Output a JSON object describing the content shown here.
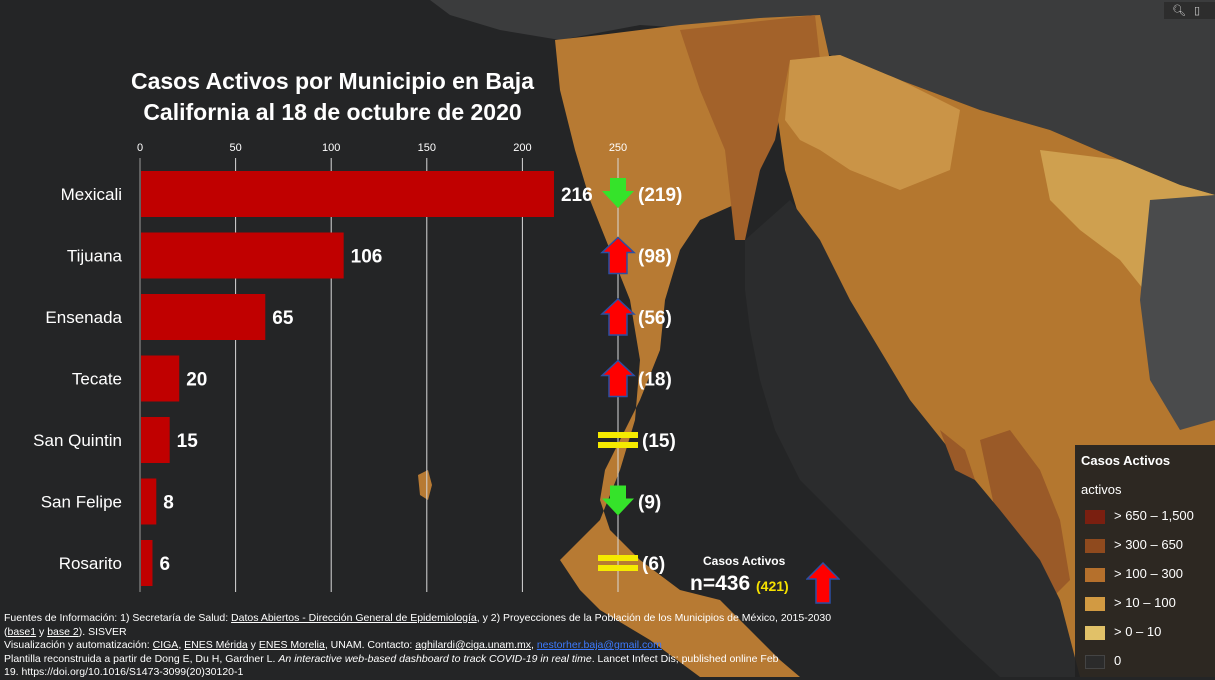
{
  "chart_data": {
    "type": "bar",
    "orientation": "horizontal",
    "title": "Casos Activos por Municipio en Baja California al 18 de octubre de 2020",
    "title_lines": [
      "Casos Activos por Municipio en Baja",
      "California al 18 de octubre de 2020"
    ],
    "categories": [
      "Mexicali",
      "Tijuana",
      "Ensenada",
      "Tecate",
      "San Quintin",
      "San Felipe",
      "Rosarito"
    ],
    "values": [
      216,
      106,
      65,
      20,
      15,
      8,
      6
    ],
    "previous_labels": [
      "(219)",
      "(98)",
      "(56)",
      "(18)",
      "(15)",
      "(9)",
      "(6)"
    ],
    "trend": [
      "down",
      "up",
      "up",
      "up",
      "equal",
      "down",
      "equal"
    ],
    "xlim": [
      0,
      250
    ],
    "x_ticks": [
      0,
      50,
      100,
      150,
      200,
      250
    ],
    "grid": true,
    "bar_color": "#c00000"
  },
  "colors": {
    "bar": "#c00000",
    "up": "#ff0000",
    "down": "#35e32a",
    "equal": "#f5ea00",
    "background": "#242526"
  },
  "summary": {
    "title": "Casos Activos",
    "total": "n=436",
    "previous": "(421)",
    "trend": "up"
  },
  "legend": {
    "title": "Casos Activos",
    "subtitle": "activos",
    "items": [
      {
        "label": "> 650 – 1,500",
        "color": "#7a1f10"
      },
      {
        "label": "> 300 – 650",
        "color": "#8f4a1e"
      },
      {
        "label": "> 100 – 300",
        "color": "#b5702c"
      },
      {
        "label": "> 10 – 100",
        "color": "#d29a42"
      },
      {
        "label": "> 0 – 10",
        "color": "#e1c168"
      },
      {
        "label": "0",
        "color": "#2b2b2b"
      }
    ]
  },
  "footer": {
    "l1a": "Fuentes de Información: 1) Secretaría de Salud: ",
    "l1b": "Datos Abiertos - Dirección General de Epidemiología",
    "l1c": ", y 2) Proyecciones de la Población de los Municipios de México, 2015-2030",
    "l2a": "(",
    "l2b": "base1",
    "l2c": " y ",
    "l2d": "base 2",
    "l2e": "). SISVER",
    "l3a": " Visualización y automatización: ",
    "l3b": "CIGA",
    "l3c": ", ",
    "l3d": "ENES Mérida",
    "l3e": " y ",
    "l3f": "ENES Morelia",
    "l3g": ", UNAM. Contacto: ",
    "l3h": "aghilardi@ciga.unam.mx",
    "l3i": ", ",
    "l3j": "nestorher.baja@gmail.com",
    "l4a": " Plantilla reconstruida a partir de Dong E, Du H, Gardner L. ",
    "l4b": "An interactive web-based dashboard to track COVID-19 in real time",
    "l4c": ". Lancet Infect Dis; published online Feb",
    "l5": "19. https://doi.org/10.1016/S1473-3099(20)30120-1"
  },
  "toolbar": {
    "search_icon": "search-icon",
    "bookmark_icon": "bookmark-icon"
  }
}
